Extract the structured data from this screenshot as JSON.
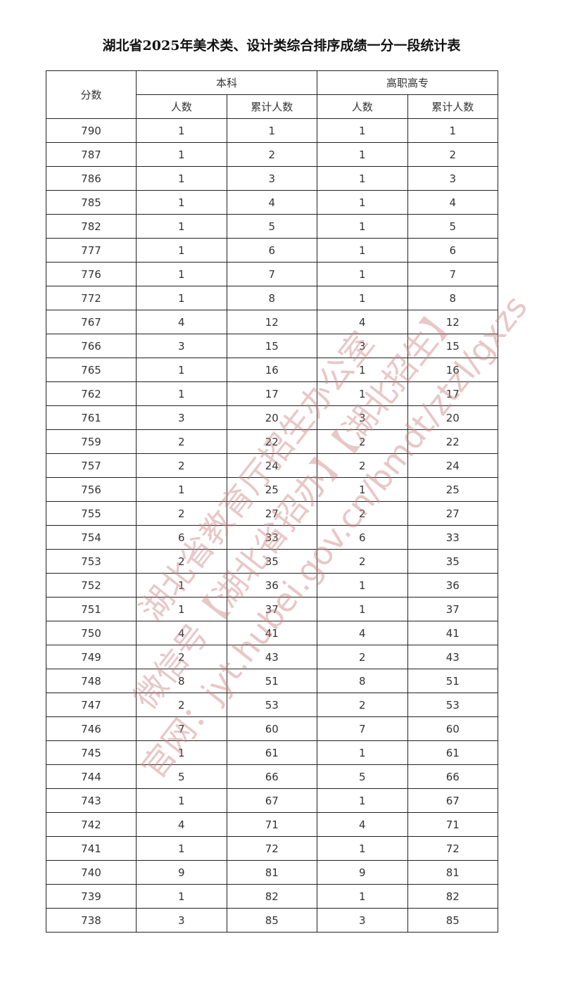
{
  "title": "湖北省2025年美术类、设计类综合排序成绩一分一段统计表",
  "headers": {
    "score": "分数",
    "undergrad": "本科",
    "vocational": "高职高专",
    "count": "人数",
    "cumulative": "累计人数"
  },
  "rows": [
    [
      "790",
      "1",
      "1",
      "1",
      "1"
    ],
    [
      "787",
      "1",
      "2",
      "1",
      "2"
    ],
    [
      "786",
      "1",
      "3",
      "1",
      "3"
    ],
    [
      "785",
      "1",
      "4",
      "1",
      "4"
    ],
    [
      "782",
      "1",
      "5",
      "1",
      "5"
    ],
    [
      "777",
      "1",
      "6",
      "1",
      "6"
    ],
    [
      "776",
      "1",
      "7",
      "1",
      "7"
    ],
    [
      "772",
      "1",
      "8",
      "1",
      "8"
    ],
    [
      "767",
      "4",
      "12",
      "4",
      "12"
    ],
    [
      "766",
      "3",
      "15",
      "3",
      "15"
    ],
    [
      "765",
      "1",
      "16",
      "1",
      "16"
    ],
    [
      "762",
      "1",
      "17",
      "1",
      "17"
    ],
    [
      "761",
      "3",
      "20",
      "3",
      "20"
    ],
    [
      "759",
      "2",
      "22",
      "2",
      "22"
    ],
    [
      "757",
      "2",
      "24",
      "2",
      "24"
    ],
    [
      "756",
      "1",
      "25",
      "1",
      "25"
    ],
    [
      "755",
      "2",
      "27",
      "2",
      "27"
    ],
    [
      "754",
      "6",
      "33",
      "6",
      "33"
    ],
    [
      "753",
      "2",
      "35",
      "2",
      "35"
    ],
    [
      "752",
      "1",
      "36",
      "1",
      "36"
    ],
    [
      "751",
      "1",
      "37",
      "1",
      "37"
    ],
    [
      "750",
      "4",
      "41",
      "4",
      "41"
    ],
    [
      "749",
      "2",
      "43",
      "2",
      "43"
    ],
    [
      "748",
      "8",
      "51",
      "8",
      "51"
    ],
    [
      "747",
      "2",
      "53",
      "2",
      "53"
    ],
    [
      "746",
      "7",
      "60",
      "7",
      "60"
    ],
    [
      "745",
      "1",
      "61",
      "1",
      "61"
    ],
    [
      "744",
      "5",
      "66",
      "5",
      "66"
    ],
    [
      "743",
      "1",
      "67",
      "1",
      "67"
    ],
    [
      "742",
      "4",
      "71",
      "4",
      "71"
    ],
    [
      "741",
      "1",
      "72",
      "1",
      "72"
    ],
    [
      "740",
      "9",
      "81",
      "9",
      "81"
    ],
    [
      "739",
      "1",
      "82",
      "1",
      "82"
    ],
    [
      "738",
      "3",
      "85",
      "3",
      "85"
    ]
  ],
  "watermark": {
    "line1": "湖北省教育厅招生办公室",
    "line2": "微信号【湖北省招办】【湖北招生】",
    "line3": "官网：jyt.hubei.gov.cn/bmdt/ztzl/gxzs",
    "color": "#cd8282"
  }
}
